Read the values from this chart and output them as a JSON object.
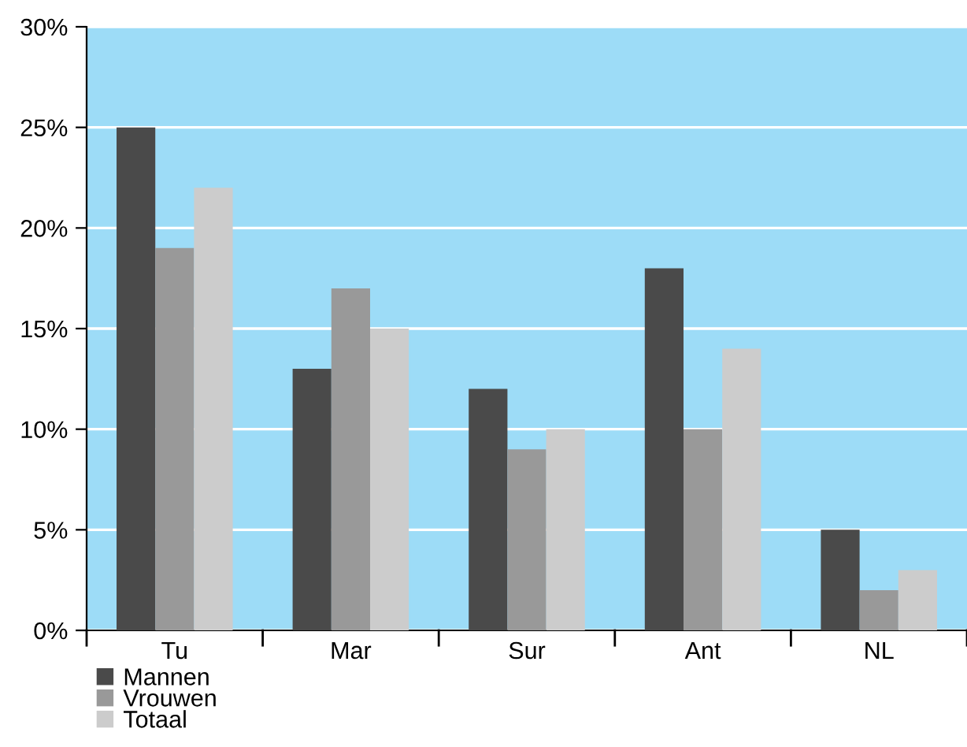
{
  "chart_data": {
    "type": "bar",
    "categories": [
      "Tu",
      "Mar",
      "Sur",
      "Ant",
      "NL"
    ],
    "series": [
      {
        "name": "Mannen",
        "color": "#4a4a4a",
        "values": [
          25,
          13,
          12,
          18,
          5
        ]
      },
      {
        "name": "Vrouwen",
        "color": "#999999",
        "values": [
          19,
          17,
          9,
          10,
          2
        ]
      },
      {
        "name": "Totaal",
        "color": "#cccccc",
        "values": [
          22,
          15,
          10,
          14,
          3
        ]
      }
    ],
    "ylim": [
      0,
      30
    ],
    "yticks": [
      {
        "value": 0,
        "label": "0%"
      },
      {
        "value": 5,
        "label": "5%"
      },
      {
        "value": 10,
        "label": "10%"
      },
      {
        "value": 15,
        "label": "15%"
      },
      {
        "value": 20,
        "label": "20%"
      },
      {
        "value": 25,
        "label": "25%"
      },
      {
        "value": 30,
        "label": "30%"
      }
    ],
    "grid": "y",
    "legend": "bottom left"
  }
}
